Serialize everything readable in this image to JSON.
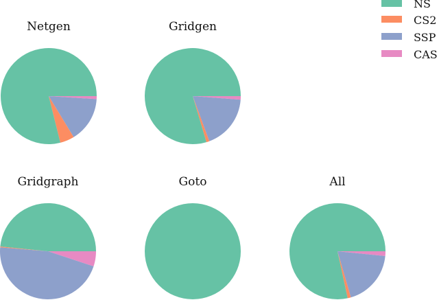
{
  "chart_data": {
    "type": "pie",
    "legend": {
      "placement": "top-right",
      "entries": [
        {
          "name": "NS",
          "color": "#66c2a5"
        },
        {
          "name": "CS2",
          "color": "#fc8d62"
        },
        {
          "name": "SSP",
          "color": "#8da0cb"
        },
        {
          "name": "CAS",
          "color": "#e78ac3"
        }
      ]
    },
    "charts": [
      {
        "title": "Netgen",
        "slices": [
          {
            "name": "NS",
            "value": 0.789
          },
          {
            "name": "CS2",
            "value": 0.048
          },
          {
            "name": "SSP",
            "value": 0.153
          },
          {
            "name": "CAS",
            "value": 0.01
          }
        ]
      },
      {
        "title": "Gridgen",
        "slices": [
          {
            "name": "NS",
            "value": 0.796
          },
          {
            "name": "CS2",
            "value": 0.01
          },
          {
            "name": "SSP",
            "value": 0.182
          },
          {
            "name": "CAS",
            "value": 0.012
          }
        ]
      },
      {
        "title": "Gridgraph",
        "slices": [
          {
            "name": "NS",
            "value": 0.484
          },
          {
            "name": "CS2",
            "value": 0.003
          },
          {
            "name": "SSP",
            "value": 0.462
          },
          {
            "name": "CAS",
            "value": 0.051
          }
        ]
      },
      {
        "title": "Goto",
        "slices": [
          {
            "name": "NS",
            "value": 1.0
          },
          {
            "name": "CS2",
            "value": 0.0
          },
          {
            "name": "SSP",
            "value": 0.0
          },
          {
            "name": "CAS",
            "value": 0.0
          }
        ]
      },
      {
        "title": "All",
        "slices": [
          {
            "name": "NS",
            "value": 0.784
          },
          {
            "name": "CS2",
            "value": 0.011
          },
          {
            "name": "SSP",
            "value": 0.189
          },
          {
            "name": "CAS",
            "value": 0.016
          }
        ]
      }
    ]
  }
}
